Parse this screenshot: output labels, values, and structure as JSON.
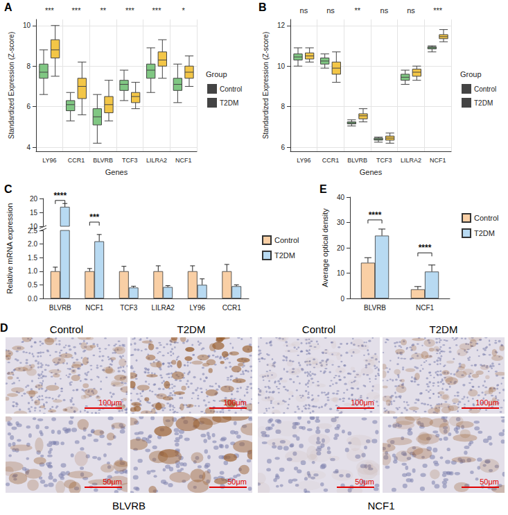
{
  "chart_data": [
    {
      "label": "A",
      "type": "boxplot",
      "x_label": "Genes",
      "y_label": "Standardized Expression (Z-score)",
      "categories": [
        "LY96",
        "CCR1",
        "BLVRB",
        "TCF3",
        "LILRA2",
        "NCF1"
      ],
      "legend_title": "Group",
      "legend": "right",
      "grid": true,
      "series": [
        {
          "name": "Control",
          "color": "#80c783",
          "values": [
            [
              6.6,
              7.4,
              7.7,
              8.1,
              8.8
            ],
            [
              5.3,
              5.8,
              6.1,
              6.3,
              6.7
            ],
            [
              4.2,
              5.1,
              5.5,
              5.9,
              6.6
            ],
            [
              6.3,
              6.8,
              7.1,
              7.3,
              7.8
            ],
            [
              6.7,
              7.4,
              7.8,
              8.1,
              8.9
            ],
            [
              6.2,
              6.8,
              7.1,
              7.4,
              8.1
            ]
          ]
        },
        {
          "name": "T2DM",
          "color": "#f3c647",
          "values": [
            [
              7.5,
              8.4,
              8.8,
              9.3,
              10.0
            ],
            [
              5.6,
              6.4,
              7.0,
              7.4,
              8.2
            ],
            [
              5.3,
              5.7,
              6.1,
              6.5,
              7.3
            ],
            [
              5.9,
              6.2,
              6.5,
              6.7,
              7.2
            ],
            [
              7.4,
              8.0,
              8.3,
              8.7,
              9.3
            ],
            [
              7.0,
              7.4,
              7.7,
              8.0,
              8.5
            ]
          ]
        }
      ],
      "significance": [
        "***",
        "***",
        "**",
        "***",
        "***",
        "*"
      ],
      "ylim": [
        3.8,
        10.3
      ],
      "yticks": [
        4,
        6,
        8,
        10
      ]
    },
    {
      "label": "B",
      "type": "boxplot",
      "x_label": "Genes",
      "y_label": "Standardized Expression (Z-score)",
      "categories": [
        "LY96",
        "CCR1",
        "BLVRB",
        "TCF3",
        "LILRA2",
        "NCF1"
      ],
      "legend_title": "Group",
      "legend": "right",
      "grid": true,
      "series": [
        {
          "name": "Control",
          "color": "#80c783",
          "values": [
            [
              10.0,
              10.3,
              10.45,
              10.6,
              10.9
            ],
            [
              9.9,
              10.1,
              10.25,
              10.4,
              10.6
            ],
            [
              7.05,
              7.15,
              7.2,
              7.25,
              7.35
            ],
            [
              6.25,
              6.35,
              6.4,
              6.45,
              6.5
            ],
            [
              9.1,
              9.3,
              9.45,
              9.6,
              9.8
            ],
            [
              10.7,
              10.85,
              10.9,
              10.95,
              11.0
            ]
          ]
        },
        {
          "name": "T2DM",
          "color": "#f3c647",
          "values": [
            [
              10.2,
              10.35,
              10.5,
              10.65,
              10.9
            ],
            [
              9.2,
              9.6,
              9.9,
              10.2,
              10.7
            ],
            [
              7.25,
              7.4,
              7.55,
              7.65,
              7.9
            ],
            [
              6.2,
              6.35,
              6.45,
              6.55,
              6.7
            ],
            [
              9.3,
              9.5,
              9.7,
              9.85,
              10.0
            ],
            [
              11.2,
              11.35,
              11.45,
              11.55,
              11.8
            ]
          ]
        }
      ],
      "significance": [
        "ns",
        "ns",
        "**",
        "ns",
        "ns",
        "***"
      ],
      "ylim": [
        5.8,
        12.3
      ],
      "yticks": [
        6,
        8,
        10,
        12
      ]
    },
    {
      "label": "C",
      "type": "bar",
      "y_label": "Relative mRNA expression",
      "categories": [
        "BLVRB",
        "NCF1",
        "TCF3",
        "LILRA2",
        "LY96",
        "CCR1"
      ],
      "legend": "right",
      "grid": false,
      "series": [
        {
          "name": "Control",
          "color": "#f9cfa5",
          "values": [
            1,
            1,
            1,
            1,
            1,
            1
          ],
          "errors": [
            0.15,
            0.1,
            0.18,
            0.2,
            0.2,
            0.25
          ]
        },
        {
          "name": "T2DM",
          "color": "#b8daf2",
          "values": [
            17,
            2.1,
            0.4,
            0.42,
            0.5,
            0.45
          ],
          "errors": [
            1.2,
            0.25,
            0.05,
            0.05,
            0.22,
            0.05
          ]
        }
      ],
      "ylim": [
        0,
        20
      ],
      "yticks": [
        {
          "value": 0,
          "label": "0.0"
        },
        0.5,
        {
          "value": 1,
          "label": "1.0"
        },
        1.5,
        {
          "value": 2,
          "label": "2.0"
        },
        2.5,
        10,
        15,
        20
      ],
      "axis_break": [
        2.5,
        10
      ],
      "comparisons": [
        {
          "category": "BLVRB",
          "label": "****",
          "y": 19.3
        },
        {
          "category": "NCF1",
          "label": "***",
          "y": 11.5
        }
      ]
    },
    {
      "label": "E",
      "type": "bar",
      "y_label": "Average optical density",
      "categories": [
        "BLVRB",
        "NCF1"
      ],
      "legend": "right",
      "grid": false,
      "series": [
        {
          "name": "Control",
          "color": "#f9cfa5",
          "values": [
            14.1,
            3.6
          ],
          "errors": [
            2.0,
            1.1
          ]
        },
        {
          "name": "T2DM",
          "color": "#b8daf2",
          "values": [
            24.8,
            10.6
          ],
          "errors": [
            2.6,
            2.6
          ]
        }
      ],
      "ylim": [
        0,
        40
      ],
      "yticks": [
        0,
        10,
        20,
        30,
        40
      ],
      "comparisons": [
        {
          "category": "BLVRB",
          "label": "****",
          "y": 31
        },
        {
          "category": "NCF1",
          "label": "****",
          "y": 18
        }
      ]
    }
  ],
  "images": {
    "label": "D",
    "panels": [
      {
        "gene": "BLVRB",
        "columns": [
          "Control",
          "T2DM"
        ],
        "scale_bars": [
          "100μm",
          "50μm"
        ]
      },
      {
        "gene": "NCF1",
        "columns": [
          "Control",
          "T2DM"
        ],
        "scale_bars": [
          "100μm",
          "50μm"
        ]
      }
    ]
  }
}
